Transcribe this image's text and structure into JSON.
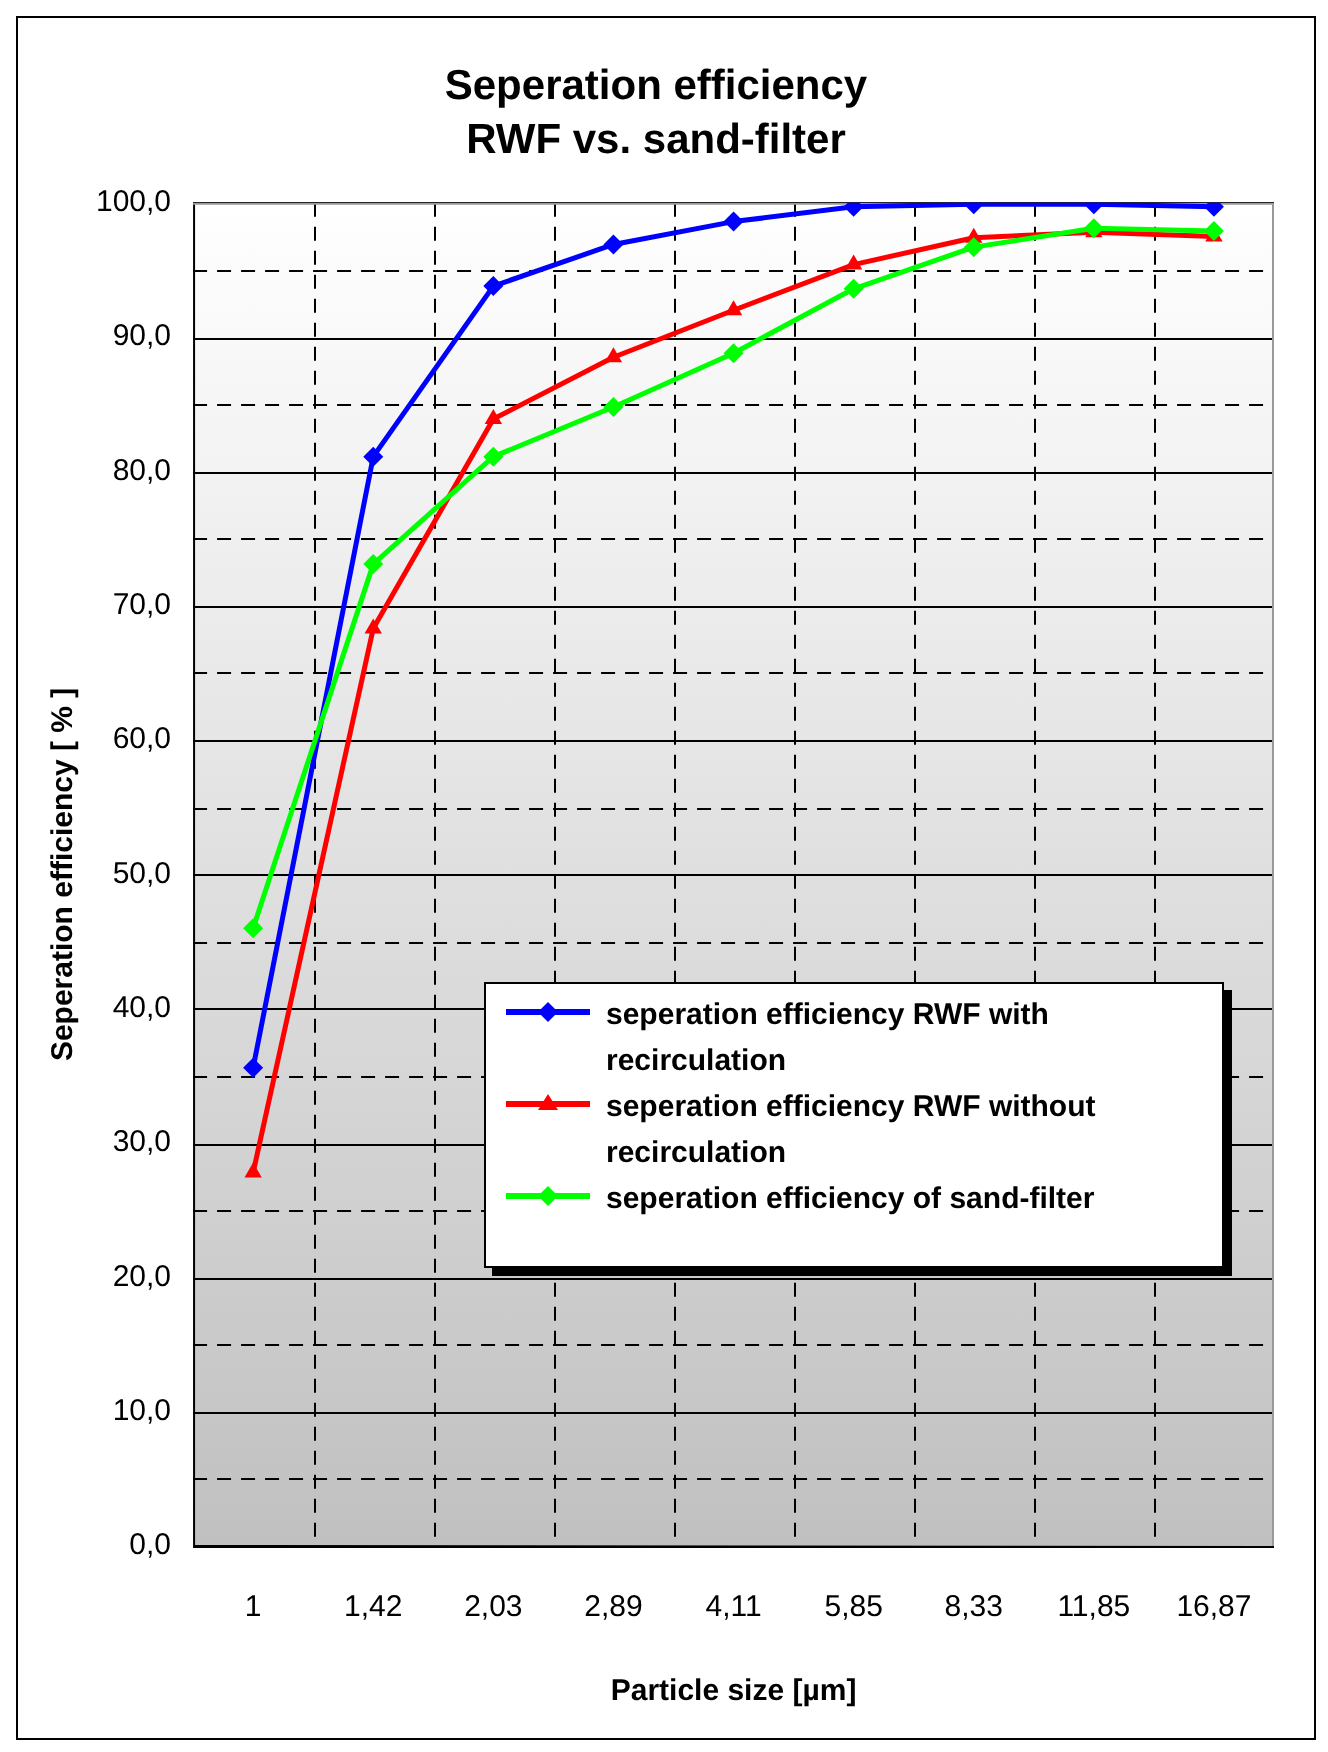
{
  "chart_data": {
    "type": "line",
    "title": "Seperation efficiency",
    "subtitle": "RWF vs. sand-filter",
    "xlabel": "Particle size [µm]",
    "ylabel": "Seperation efficiency [ % ]",
    "categories": [
      "1",
      "1,42",
      "2,03",
      "2,89",
      "4,11",
      "5,85",
      "8,33",
      "11,85",
      "16,87"
    ],
    "ylim": [
      0,
      100
    ],
    "yticks": [
      {
        "value": 0,
        "label": "0,0"
      },
      {
        "value": 5,
        "label": null
      },
      {
        "value": 10,
        "label": "10,0"
      },
      {
        "value": 15,
        "label": null
      },
      {
        "value": 20,
        "label": "20,0"
      },
      {
        "value": 25,
        "label": null
      },
      {
        "value": 30,
        "label": "30,0"
      },
      {
        "value": 35,
        "label": null
      },
      {
        "value": 40,
        "label": "40,0"
      },
      {
        "value": 45,
        "label": null
      },
      {
        "value": 50,
        "label": "50,0"
      },
      {
        "value": 55,
        "label": null
      },
      {
        "value": 60,
        "label": "60,0"
      },
      {
        "value": 65,
        "label": null
      },
      {
        "value": 70,
        "label": "70,0"
      },
      {
        "value": 75,
        "label": null
      },
      {
        "value": 80,
        "label": "80,0"
      },
      {
        "value": 85,
        "label": null
      },
      {
        "value": 90,
        "label": "90,0"
      },
      {
        "value": 95,
        "label": null
      },
      {
        "value": 100,
        "label": "100,0"
      }
    ],
    "grid": true,
    "legend": "bottom right",
    "line_style": "solid",
    "series": [
      {
        "name": "seperation efficiency RWF with recirculation",
        "color": "#0000ff",
        "marker": "diamond",
        "values": [
          35.6,
          81.1,
          93.8,
          96.9,
          98.6,
          99.7,
          99.9,
          99.9,
          99.7
        ]
      },
      {
        "name": "seperation efficiency RWF without recirculation",
        "color": "#ff0000",
        "marker": "triangle",
        "values": [
          27.8,
          68.3,
          83.9,
          88.5,
          92.0,
          95.4,
          97.4,
          97.8,
          97.5
        ]
      },
      {
        "name": "seperation efficiency of sand-filter",
        "color": "#00ff00",
        "marker": "diamond",
        "values": [
          46.0,
          73.1,
          81.1,
          84.8,
          88.8,
          93.6,
          96.7,
          98.1,
          97.9
        ]
      }
    ]
  }
}
